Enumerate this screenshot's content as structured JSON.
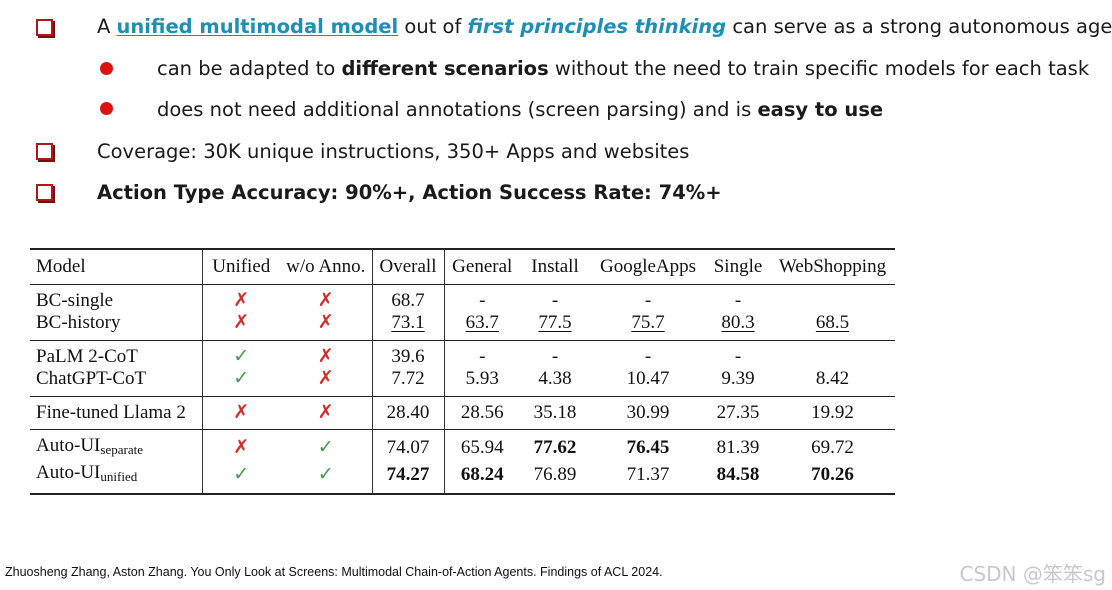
{
  "bullets": {
    "b1": {
      "pre": "A ",
      "highlight1": "unified multimodal model",
      "mid": " out of ",
      "highlight2": "first principles thinking",
      "post": " can serve as a strong autonomous agent"
    },
    "s1": {
      "pre": "can be adapted to ",
      "bold": "different scenarios",
      "post": " without the need to train specific models for each task"
    },
    "s2": {
      "pre": "does not need additional annotations (screen parsing) and is ",
      "bold": "easy to use"
    },
    "b2": "Coverage: 30K unique instructions, 350+ Apps and websites",
    "b3": "Action Type Accuracy: 90%+, Action Success Rate: 74%+"
  },
  "table": {
    "headers": [
      "Model",
      "Unified",
      "w/o Anno.",
      "Overall",
      "General",
      "Install",
      "GoogleApps",
      "Single",
      "WebShopping"
    ],
    "rows": {
      "bc_single": [
        "BC-single",
        "✗",
        "✗",
        "68.7",
        "-",
        "-",
        "-",
        "-",
        ""
      ],
      "bc_history": [
        "BC-history",
        "✗",
        "✗",
        "73.1",
        "63.7",
        "77.5",
        "75.7",
        "80.3",
        "68.5"
      ],
      "palm": [
        "PaLM 2-CoT",
        "✓",
        "✗",
        "39.6",
        "-",
        "-",
        "-",
        "-",
        ""
      ],
      "chatgpt": [
        "ChatGPT-CoT",
        "✓",
        "✗",
        "7.72",
        "5.93",
        "4.38",
        "10.47",
        "9.39",
        "8.42"
      ],
      "llama": [
        "Fine-tuned Llama 2",
        "✗",
        "✗",
        "28.40",
        "28.56",
        "35.18",
        "30.99",
        "27.35",
        "19.92"
      ],
      "auto_sep": [
        "Auto-UI",
        "✗",
        "✓",
        "74.07",
        "65.94",
        "77.62",
        "76.45",
        "81.39",
        "69.72"
      ],
      "auto_uni": [
        "Auto-UI",
        "✓",
        "✓",
        "74.27",
        "68.24",
        "76.89",
        "71.37",
        "84.58",
        "70.26"
      ]
    },
    "sub_separate": "separate",
    "sub_unified": "unified"
  },
  "citation": "Zhuosheng Zhang, Aston Zhang. You Only Look at Screens: Multimodal Chain-of-Action Agents. Findings of ACL 2024.",
  "watermark": "CSDN @笨笨sg",
  "colors": {
    "accent": "#1d8fb5",
    "bullet_red": "#dd1111",
    "checkbox": "#b01818",
    "cross": "#d52b2b",
    "check": "#3f9c48"
  }
}
